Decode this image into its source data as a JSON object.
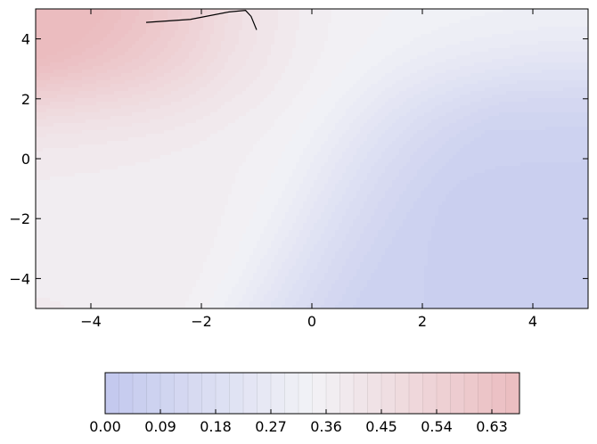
{
  "chart_data": [
    {
      "type": "heatmap",
      "subtype": "filled-contour",
      "title": "",
      "xlabel": "",
      "ylabel": "",
      "xlim": [
        -5,
        5
      ],
      "ylim": [
        -5,
        5
      ],
      "x_ticks": [
        -4,
        -2,
        0,
        2,
        4
      ],
      "y_ticks": [
        -4,
        -2,
        0,
        2,
        4
      ],
      "x_tick_labels": [
        "−4",
        "−2",
        "0",
        "2",
        "4"
      ],
      "y_tick_labels": [
        "−4",
        "−2",
        "0",
        "2",
        "4"
      ],
      "grid": false,
      "colormap": "coolwarm",
      "value_range": [
        0.0,
        0.675
      ],
      "contour_step": 0.0225,
      "features": [
        {
          "kind": "maximum",
          "x": -5,
          "y": 5,
          "value": 0.66
        },
        {
          "kind": "minimum",
          "x": 3.5,
          "y": -3.5,
          "value": 0.01
        },
        {
          "kind": "saddle",
          "x": -1.3,
          "y": 0.2,
          "value": 0.36
        }
      ],
      "trajectory": {
        "color": "#000000",
        "points": [
          [
            -3.0,
            4.55
          ],
          [
            -2.2,
            4.65
          ],
          [
            -1.5,
            4.9
          ],
          [
            -1.2,
            4.95
          ],
          [
            -1.1,
            4.75
          ],
          [
            -1.0,
            4.3
          ]
        ]
      }
    },
    {
      "type": "colorbar",
      "orientation": "horizontal",
      "range": [
        0.0,
        0.675
      ],
      "ticks": [
        0.0,
        0.09,
        0.18,
        0.27,
        0.36,
        0.45,
        0.54,
        0.63
      ],
      "tick_labels": [
        "0.00",
        "0.09",
        "0.18",
        "0.27",
        "0.36",
        "0.45",
        "0.54",
        "0.63"
      ]
    }
  ],
  "colors": {
    "low": "#c2c8ee",
    "mid": "#f2f2f6",
    "high": "#ebbcbf"
  }
}
